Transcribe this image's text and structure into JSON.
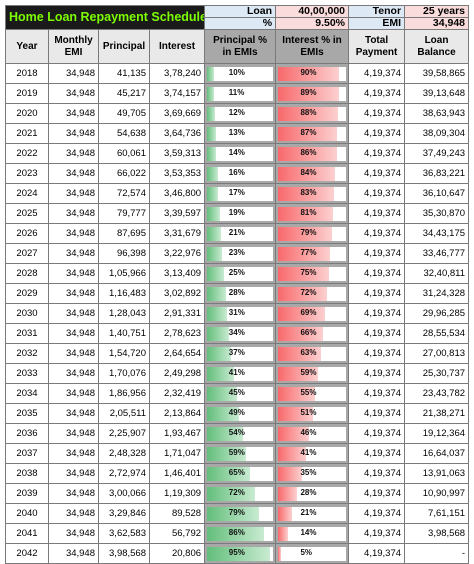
{
  "title": "Home Loan Repayment Schedule",
  "summary": {
    "loan_label": "Loan",
    "loan_value": "40,00,000",
    "tenor_label": "Tenor",
    "tenor_value": "25 years",
    "rate_label": "%",
    "rate_value": "9.50%",
    "emi_label": "EMI",
    "emi_value": "34,948"
  },
  "headers": {
    "year": "Year",
    "emi": "Monthly EMI",
    "principal": "Principal",
    "interest": "Interest",
    "principal_pct": "Principal % in EMIs",
    "interest_pct": "Interest % in EMIs",
    "total": "Total Payment",
    "balance": "Loan Balance"
  },
  "colors": {
    "principal_bar": "#63be7b",
    "interest_bar": "#f8696b",
    "title_bg": "#1a1a1a",
    "title_text": "#7CFC00"
  },
  "rows": [
    {
      "year": "2018",
      "emi": "34,948",
      "principal": "41,135",
      "interest": "3,78,240",
      "p_pct": "10%",
      "i_pct": "90%",
      "p_val": 10,
      "i_val": 90,
      "total": "4,19,374",
      "balance": "39,58,865"
    },
    {
      "year": "2019",
      "emi": "34,948",
      "principal": "45,217",
      "interest": "3,74,157",
      "p_pct": "11%",
      "i_pct": "89%",
      "p_val": 11,
      "i_val": 89,
      "total": "4,19,374",
      "balance": "39,13,648"
    },
    {
      "year": "2020",
      "emi": "34,948",
      "principal": "49,705",
      "interest": "3,69,669",
      "p_pct": "12%",
      "i_pct": "88%",
      "p_val": 12,
      "i_val": 88,
      "total": "4,19,374",
      "balance": "38,63,943"
    },
    {
      "year": "2021",
      "emi": "34,948",
      "principal": "54,638",
      "interest": "3,64,736",
      "p_pct": "13%",
      "i_pct": "87%",
      "p_val": 13,
      "i_val": 87,
      "total": "4,19,374",
      "balance": "38,09,304"
    },
    {
      "year": "2022",
      "emi": "34,948",
      "principal": "60,061",
      "interest": "3,59,313",
      "p_pct": "14%",
      "i_pct": "86%",
      "p_val": 14,
      "i_val": 86,
      "total": "4,19,374",
      "balance": "37,49,243"
    },
    {
      "year": "2023",
      "emi": "34,948",
      "principal": "66,022",
      "interest": "3,53,353",
      "p_pct": "16%",
      "i_pct": "84%",
      "p_val": 16,
      "i_val": 84,
      "total": "4,19,374",
      "balance": "36,83,221"
    },
    {
      "year": "2024",
      "emi": "34,948",
      "principal": "72,574",
      "interest": "3,46,800",
      "p_pct": "17%",
      "i_pct": "83%",
      "p_val": 17,
      "i_val": 83,
      "total": "4,19,374",
      "balance": "36,10,647"
    },
    {
      "year": "2025",
      "emi": "34,948",
      "principal": "79,777",
      "interest": "3,39,597",
      "p_pct": "19%",
      "i_pct": "81%",
      "p_val": 19,
      "i_val": 81,
      "total": "4,19,374",
      "balance": "35,30,870"
    },
    {
      "year": "2026",
      "emi": "34,948",
      "principal": "87,695",
      "interest": "3,31,679",
      "p_pct": "21%",
      "i_pct": "79%",
      "p_val": 21,
      "i_val": 79,
      "total": "4,19,374",
      "balance": "34,43,175"
    },
    {
      "year": "2027",
      "emi": "34,948",
      "principal": "96,398",
      "interest": "3,22,976",
      "p_pct": "23%",
      "i_pct": "77%",
      "p_val": 23,
      "i_val": 77,
      "total": "4,19,374",
      "balance": "33,46,777"
    },
    {
      "year": "2028",
      "emi": "34,948",
      "principal": "1,05,966",
      "interest": "3,13,409",
      "p_pct": "25%",
      "i_pct": "75%",
      "p_val": 25,
      "i_val": 75,
      "total": "4,19,374",
      "balance": "32,40,811"
    },
    {
      "year": "2029",
      "emi": "34,948",
      "principal": "1,16,483",
      "interest": "3,02,892",
      "p_pct": "28%",
      "i_pct": "72%",
      "p_val": 28,
      "i_val": 72,
      "total": "4,19,374",
      "balance": "31,24,328"
    },
    {
      "year": "2030",
      "emi": "34,948",
      "principal": "1,28,043",
      "interest": "2,91,331",
      "p_pct": "31%",
      "i_pct": "69%",
      "p_val": 31,
      "i_val": 69,
      "total": "4,19,374",
      "balance": "29,96,285"
    },
    {
      "year": "2031",
      "emi": "34,948",
      "principal": "1,40,751",
      "interest": "2,78,623",
      "p_pct": "34%",
      "i_pct": "66%",
      "p_val": 34,
      "i_val": 66,
      "total": "4,19,374",
      "balance": "28,55,534"
    },
    {
      "year": "2032",
      "emi": "34,948",
      "principal": "1,54,720",
      "interest": "2,64,654",
      "p_pct": "37%",
      "i_pct": "63%",
      "p_val": 37,
      "i_val": 63,
      "total": "4,19,374",
      "balance": "27,00,813"
    },
    {
      "year": "2033",
      "emi": "34,948",
      "principal": "1,70,076",
      "interest": "2,49,298",
      "p_pct": "41%",
      "i_pct": "59%",
      "p_val": 41,
      "i_val": 59,
      "total": "4,19,374",
      "balance": "25,30,737"
    },
    {
      "year": "2034",
      "emi": "34,948",
      "principal": "1,86,956",
      "interest": "2,32,419",
      "p_pct": "45%",
      "i_pct": "55%",
      "p_val": 45,
      "i_val": 55,
      "total": "4,19,374",
      "balance": "23,43,782"
    },
    {
      "year": "2035",
      "emi": "34,948",
      "principal": "2,05,511",
      "interest": "2,13,864",
      "p_pct": "49%",
      "i_pct": "51%",
      "p_val": 49,
      "i_val": 51,
      "total": "4,19,374",
      "balance": "21,38,271"
    },
    {
      "year": "2036",
      "emi": "34,948",
      "principal": "2,25,907",
      "interest": "1,93,467",
      "p_pct": "54%",
      "i_pct": "46%",
      "p_val": 54,
      "i_val": 46,
      "total": "4,19,374",
      "balance": "19,12,364"
    },
    {
      "year": "2037",
      "emi": "34,948",
      "principal": "2,48,328",
      "interest": "1,71,047",
      "p_pct": "59%",
      "i_pct": "41%",
      "p_val": 59,
      "i_val": 41,
      "total": "4,19,374",
      "balance": "16,64,037"
    },
    {
      "year": "2038",
      "emi": "34,948",
      "principal": "2,72,974",
      "interest": "1,46,401",
      "p_pct": "65%",
      "i_pct": "35%",
      "p_val": 65,
      "i_val": 35,
      "total": "4,19,374",
      "balance": "13,91,063"
    },
    {
      "year": "2039",
      "emi": "34,948",
      "principal": "3,00,066",
      "interest": "1,19,309",
      "p_pct": "72%",
      "i_pct": "28%",
      "p_val": 72,
      "i_val": 28,
      "total": "4,19,374",
      "balance": "10,90,997"
    },
    {
      "year": "2040",
      "emi": "34,948",
      "principal": "3,29,846",
      "interest": "89,528",
      "p_pct": "79%",
      "i_pct": "21%",
      "p_val": 79,
      "i_val": 21,
      "total": "4,19,374",
      "balance": "7,61,151"
    },
    {
      "year": "2041",
      "emi": "34,948",
      "principal": "3,62,583",
      "interest": "56,792",
      "p_pct": "86%",
      "i_pct": "14%",
      "p_val": 86,
      "i_val": 14,
      "total": "4,19,374",
      "balance": "3,98,568"
    },
    {
      "year": "2042",
      "emi": "34,948",
      "principal": "3,98,568",
      "interest": "20,806",
      "p_pct": "95%",
      "i_pct": "5%",
      "p_val": 95,
      "i_val": 5,
      "total": "4,19,374",
      "balance": "-"
    }
  ]
}
